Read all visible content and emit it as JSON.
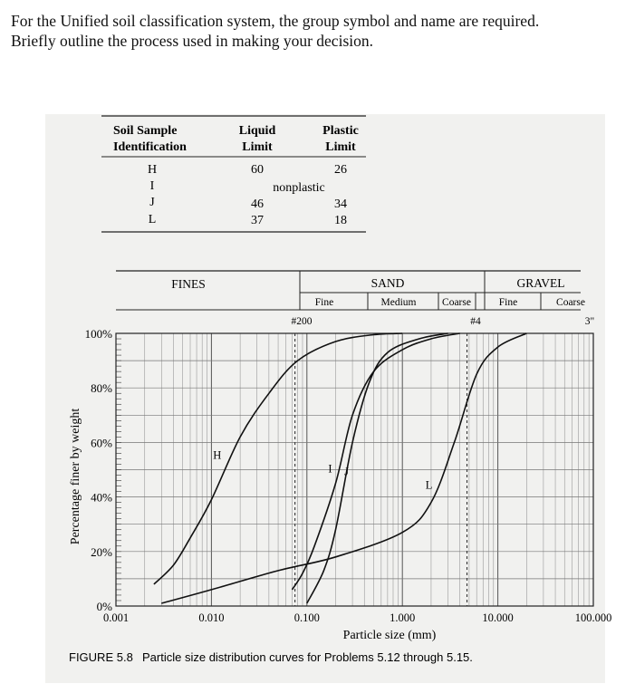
{
  "question": {
    "line1": "For the Unified soil classification system, the group symbol and name are required.",
    "line2": "Briefly outline the process used in making your decision."
  },
  "table": {
    "headers": {
      "sample": [
        "Soil Sample",
        "Identification"
      ],
      "liquid": [
        "Liquid",
        "Limit"
      ],
      "plastic": [
        "Plastic",
        "Limit"
      ]
    },
    "rows": [
      {
        "id": "H",
        "ll": "60",
        "pl": "26"
      },
      {
        "id": "I",
        "ll": "",
        "pl": "",
        "note": "nonplastic"
      },
      {
        "id": "J",
        "ll": "46",
        "pl": "34"
      },
      {
        "id": "L",
        "ll": "37",
        "pl": "18"
      }
    ]
  },
  "size_classes": {
    "fines": "FINES",
    "sand": "SAND",
    "gravel": "GRAVEL",
    "sand_sub": [
      "Fine",
      "Medium",
      "Coarse"
    ],
    "gravel_sub": [
      "Fine",
      "Coarse"
    ],
    "sieves": [
      "#200",
      "#4",
      "3\""
    ]
  },
  "figure": {
    "caption_label": "FIGURE 5.8",
    "caption_text": "Particle size distribution curves for Problems 5.12 through 5.15."
  },
  "chart_data": {
    "type": "line",
    "xscale": "log",
    "xlim": [
      0.001,
      100
    ],
    "ylim": [
      0,
      100
    ],
    "xlabel": "Particle size (mm)",
    "ylabel": "Percentage finer by weight",
    "xticks": [
      "0.001",
      "0.010",
      "0.100",
      "1.000",
      "10.000",
      "100.000"
    ],
    "yticks": [
      "0%",
      "20%",
      "40%",
      "60%",
      "80%",
      "100%"
    ],
    "grid": true,
    "series": [
      {
        "name": "H",
        "points": [
          [
            0.0025,
            8
          ],
          [
            0.004,
            15
          ],
          [
            0.006,
            25
          ],
          [
            0.01,
            39
          ],
          [
            0.02,
            62
          ],
          [
            0.04,
            78
          ],
          [
            0.08,
            90
          ],
          [
            0.2,
            97
          ],
          [
            0.5,
            99.5
          ],
          [
            1.0,
            100
          ]
        ]
      },
      {
        "name": "I",
        "points": [
          [
            0.07,
            6
          ],
          [
            0.09,
            12
          ],
          [
            0.12,
            22
          ],
          [
            0.2,
            45
          ],
          [
            0.3,
            70
          ],
          [
            0.5,
            86
          ],
          [
            1.0,
            94
          ],
          [
            2.0,
            98
          ],
          [
            4.0,
            100
          ]
        ]
      },
      {
        "name": "J",
        "points": [
          [
            0.1,
            1
          ],
          [
            0.15,
            13
          ],
          [
            0.2,
            28
          ],
          [
            0.3,
            60
          ],
          [
            0.45,
            82
          ],
          [
            0.7,
            93
          ],
          [
            1.5,
            98
          ],
          [
            3.0,
            100
          ]
        ]
      },
      {
        "name": "L",
        "points": [
          [
            0.003,
            1
          ],
          [
            0.01,
            6
          ],
          [
            0.05,
            13
          ],
          [
            0.2,
            18
          ],
          [
            1.0,
            27
          ],
          [
            2.0,
            38
          ],
          [
            3.5,
            60
          ],
          [
            6.0,
            85
          ],
          [
            10.0,
            95
          ],
          [
            20.0,
            100
          ]
        ]
      }
    ],
    "curve_labels": {
      "H": "H",
      "I": "I",
      "J": "J",
      "L": "L"
    }
  }
}
